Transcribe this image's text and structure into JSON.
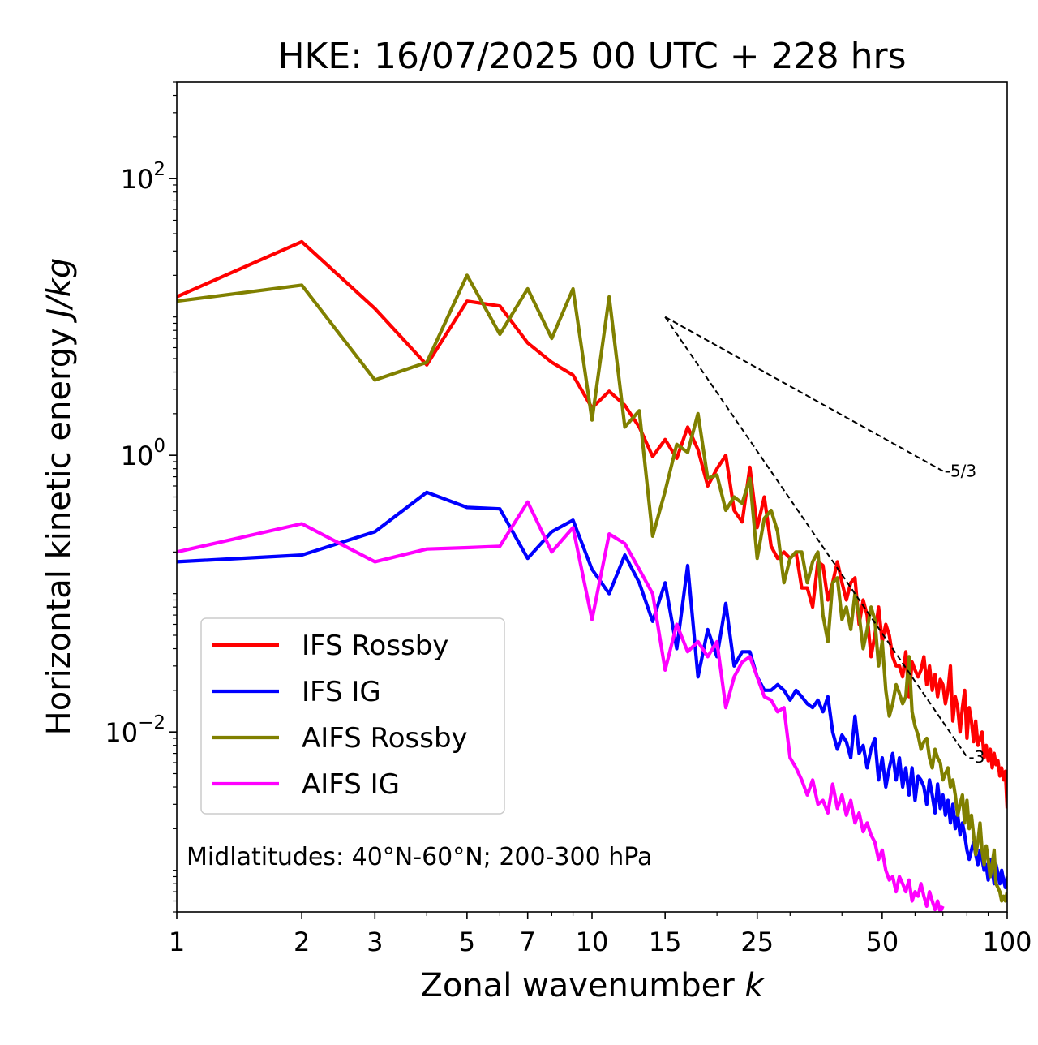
{
  "chart_data": {
    "type": "line",
    "title": "HKE: 16/07/2025 00 UTC + 228 hrs",
    "xlabel": "Zonal wavenumber",
    "xlabel_var": "k",
    "ylabel": "Horizontal kinetic energy",
    "ylabel_units": "J/kg",
    "x_scale": "log",
    "y_scale": "log",
    "xlim": [
      1,
      100
    ],
    "ylim": [
      0.0005,
      500
    ],
    "x_ticks": [
      1,
      2,
      3,
      5,
      7,
      10,
      15,
      25,
      50,
      100
    ],
    "x_tick_labels": [
      "1",
      "2",
      "3",
      "5",
      "7",
      "10",
      "15",
      "25",
      "50",
      "100"
    ],
    "y_ticks": [
      0.01,
      1,
      100
    ],
    "y_tick_labels": [
      {
        "base": "10",
        "exp": "−2"
      },
      {
        "base": "10",
        "exp": "0"
      },
      {
        "base": "10",
        "exp": "2"
      }
    ],
    "grid": false,
    "legend_position": "lower-left",
    "annotation": "Midlatitudes: 40°N-60°N; 200-300 hPa",
    "series": [
      {
        "name": "IFS Rossby",
        "color": "#ff0000",
        "x": [
          1,
          2,
          3,
          4,
          5,
          6,
          7,
          8,
          9,
          10,
          11,
          12,
          13,
          14,
          15,
          16,
          17,
          18,
          19,
          20,
          21,
          22,
          23,
          24,
          25,
          26,
          27,
          28,
          29,
          30,
          31,
          32,
          33,
          34,
          35,
          36,
          37,
          38,
          39,
          40,
          41,
          42,
          43,
          44,
          45,
          46,
          47,
          48,
          49,
          50,
          51,
          52,
          53,
          54,
          55,
          56,
          57,
          58,
          59,
          60,
          61,
          62,
          63,
          64,
          65,
          66,
          67,
          68,
          69,
          70,
          71,
          72,
          73,
          74,
          75,
          76,
          77,
          78,
          79,
          80,
          81,
          82,
          83,
          84,
          85,
          86,
          87,
          88,
          89,
          90,
          91,
          92,
          93,
          94,
          95,
          96,
          97,
          98,
          99,
          100
        ],
        "values": [
          14,
          35,
          11.5,
          4.5,
          13,
          12,
          6.5,
          4.7,
          3.8,
          2.2,
          2.9,
          2.3,
          1.6,
          0.98,
          1.3,
          0.95,
          1.6,
          1.1,
          0.6,
          0.8,
          1,
          0.4,
          0.33,
          0.82,
          0.3,
          0.5,
          0.22,
          0.18,
          0.2,
          0.18,
          0.2,
          0.11,
          0.11,
          0.08,
          0.17,
          0.16,
          0.09,
          0.12,
          0.17,
          0.12,
          0.09,
          0.12,
          0.13,
          0.06,
          0.09,
          0.07,
          0.035,
          0.05,
          0.08,
          0.045,
          0.06,
          0.05,
          0.035,
          0.03,
          0.03,
          0.025,
          0.038,
          0.018,
          0.032,
          0.028,
          0.025,
          0.028,
          0.035,
          0.022,
          0.03,
          0.02,
          0.026,
          0.018,
          0.024,
          0.022,
          0.016,
          0.02,
          0.03,
          0.012,
          0.018,
          0.015,
          0.01,
          0.015,
          0.02,
          0.009,
          0.015,
          0.012,
          0.0085,
          0.012,
          0.008,
          0.009,
          0.01,
          0.0065,
          0.008,
          0.0062,
          0.0075,
          0.0055,
          0.007,
          0.0058,
          0.0062,
          0.0048,
          0.0055,
          0.0045,
          0.0052,
          0.0028
        ]
      },
      {
        "name": "IFS IG",
        "color": "#0000ff",
        "x": [
          1,
          2,
          3,
          4,
          5,
          6,
          7,
          8,
          9,
          10,
          11,
          12,
          13,
          14,
          15,
          16,
          17,
          18,
          19,
          20,
          21,
          22,
          23,
          24,
          25,
          26,
          27,
          28,
          29,
          30,
          31,
          32,
          33,
          34,
          35,
          36,
          37,
          38,
          39,
          40,
          41,
          42,
          43,
          44,
          45,
          46,
          47,
          48,
          49,
          50,
          51,
          52,
          53,
          54,
          55,
          56,
          57,
          58,
          59,
          60,
          61,
          62,
          63,
          64,
          65,
          66,
          67,
          68,
          69,
          70,
          71,
          72,
          73,
          74,
          75,
          76,
          77,
          78,
          79,
          80,
          81,
          82,
          83,
          84,
          85,
          86,
          87,
          88,
          89,
          90,
          91,
          92,
          93,
          94,
          95,
          96,
          97,
          98,
          99,
          100
        ],
        "values": [
          0.17,
          0.19,
          0.28,
          0.54,
          0.42,
          0.41,
          0.18,
          0.28,
          0.34,
          0.15,
          0.1,
          0.19,
          0.12,
          0.063,
          0.12,
          0.04,
          0.16,
          0.025,
          0.055,
          0.035,
          0.085,
          0.03,
          0.038,
          0.038,
          0.025,
          0.02,
          0.02,
          0.022,
          0.02,
          0.017,
          0.02,
          0.018,
          0.016,
          0.015,
          0.017,
          0.014,
          0.018,
          0.01,
          0.0075,
          0.0095,
          0.0085,
          0.0065,
          0.013,
          0.007,
          0.008,
          0.0055,
          0.0075,
          0.009,
          0.0045,
          0.0065,
          0.004,
          0.0055,
          0.007,
          0.0045,
          0.0065,
          0.004,
          0.0055,
          0.0035,
          0.0055,
          0.0032,
          0.0048,
          0.0045,
          0.004,
          0.003,
          0.0045,
          0.0035,
          0.0026,
          0.0042,
          0.0028,
          0.0035,
          0.0025,
          0.0032,
          0.0022,
          0.003,
          0.002,
          0.0025,
          0.0018,
          0.0022,
          0.0018,
          0.0014,
          0.0012,
          0.0014,
          0.0016,
          0.0013,
          0.0011,
          0.0014,
          0.0012,
          0.001,
          0.0011,
          0.00085,
          0.0012,
          0.001,
          0.0008,
          0.0011,
          0.00095,
          0.0008,
          0.001,
          0.00085,
          0.00075,
          0.0009
        ]
      },
      {
        "name": "AIFS Rossby",
        "color": "#808000",
        "x": [
          1,
          2,
          3,
          4,
          5,
          6,
          7,
          8,
          9,
          10,
          11,
          12,
          13,
          14,
          15,
          16,
          17,
          18,
          19,
          20,
          21,
          22,
          23,
          24,
          25,
          26,
          27,
          28,
          29,
          30,
          31,
          32,
          33,
          34,
          35,
          36,
          37,
          38,
          39,
          40,
          41,
          42,
          43,
          44,
          45,
          46,
          47,
          48,
          49,
          50,
          51,
          52,
          53,
          54,
          55,
          56,
          57,
          58,
          59,
          60,
          61,
          62,
          63,
          64,
          65,
          66,
          67,
          68,
          69,
          70,
          71,
          72,
          73,
          74,
          75,
          76,
          77,
          78,
          79,
          80,
          81,
          82,
          83,
          84,
          85,
          86,
          87,
          88,
          89,
          90,
          91,
          92,
          93,
          94,
          95,
          96,
          97,
          98,
          99,
          100
        ],
        "values": [
          13,
          17,
          3.5,
          4.7,
          20,
          7.5,
          16,
          7,
          16,
          1.8,
          14,
          1.6,
          2.1,
          0.26,
          0.55,
          1.2,
          1.05,
          2,
          0.68,
          0.72,
          0.4,
          0.5,
          0.45,
          0.68,
          0.18,
          0.35,
          0.4,
          0.28,
          0.12,
          0.18,
          0.2,
          0.2,
          0.12,
          0.17,
          0.2,
          0.07,
          0.045,
          0.12,
          0.13,
          0.065,
          0.08,
          0.055,
          0.1,
          0.07,
          0.04,
          0.055,
          0.08,
          0.065,
          0.03,
          0.045,
          0.02,
          0.013,
          0.016,
          0.022,
          0.019,
          0.016,
          0.018,
          0.035,
          0.014,
          0.011,
          0.0095,
          0.0075,
          0.0085,
          0.009,
          0.0065,
          0.0055,
          0.0075,
          0.0065,
          0.006,
          0.0045,
          0.005,
          0.0055,
          0.004,
          0.0045,
          0.0035,
          0.0025,
          0.003,
          0.0035,
          0.0022,
          0.0032,
          0.002,
          0.0025,
          0.0018,
          0.0013,
          0.0016,
          0.0022,
          0.0014,
          0.0011,
          0.0015,
          0.0012,
          0.0009,
          0.0011,
          0.0014,
          0.0008,
          0.00075,
          0.0007,
          0.0006,
          0.00065,
          0.0006,
          0.0007
        ]
      },
      {
        "name": "AIFS IG",
        "color": "#ff00ff",
        "x": [
          1,
          2,
          3,
          4,
          5,
          6,
          7,
          8,
          9,
          10,
          11,
          12,
          13,
          14,
          15,
          16,
          17,
          18,
          19,
          20,
          21,
          22,
          23,
          24,
          25,
          26,
          27,
          28,
          29,
          30,
          31,
          32,
          33,
          34,
          35,
          36,
          37,
          38,
          39,
          40,
          41,
          42,
          43,
          44,
          45,
          46,
          47,
          48,
          49,
          50,
          51,
          52,
          53,
          54,
          55,
          56,
          57,
          58,
          59,
          60,
          61,
          62,
          63,
          64,
          65,
          66,
          67,
          68,
          69,
          70
        ],
        "values": [
          0.2,
          0.32,
          0.17,
          0.21,
          0.215,
          0.22,
          0.46,
          0.2,
          0.3,
          0.065,
          0.27,
          0.23,
          0.15,
          0.1,
          0.028,
          0.06,
          0.038,
          0.045,
          0.035,
          0.045,
          0.015,
          0.025,
          0.032,
          0.035,
          0.025,
          0.018,
          0.017,
          0.014,
          0.015,
          0.0065,
          0.0055,
          0.0045,
          0.0035,
          0.0045,
          0.003,
          0.0032,
          0.0026,
          0.0042,
          0.0028,
          0.0035,
          0.0025,
          0.0032,
          0.0022,
          0.0026,
          0.0019,
          0.0022,
          0.0018,
          0.0016,
          0.0012,
          0.0014,
          0.001,
          0.00085,
          0.0009,
          0.0007,
          0.0009,
          0.0008,
          0.0007,
          0.00085,
          0.0006,
          0.0007,
          0.00065,
          0.0008,
          0.00065,
          0.00055,
          0.0007,
          0.0006,
          0.00052,
          0.0006,
          0.0005,
          0.00055
        ]
      }
    ],
    "reference_slopes": [
      {
        "label": "-5/3",
        "x_start": 15,
        "y_start": 10,
        "x_end": 70,
        "y_end": 0.77
      },
      {
        "label": "-3",
        "x_start": 15,
        "y_start": 10,
        "x_end": 80,
        "y_end": 0.0066
      }
    ]
  }
}
